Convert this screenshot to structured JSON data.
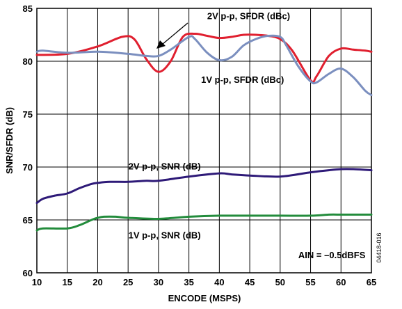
{
  "chart_data": {
    "type": "line",
    "xlabel": "ENCODE (MSPS)",
    "ylabel": "SNR/SFDR (dB)",
    "xlim": [
      10,
      65
    ],
    "ylim": [
      60,
      85
    ],
    "x_ticks": [
      10,
      15,
      20,
      25,
      30,
      35,
      40,
      45,
      50,
      55,
      60,
      65
    ],
    "y_ticks": [
      60,
      65,
      70,
      75,
      80,
      85
    ],
    "grid": true,
    "series": [
      {
        "name": "2V p-p, SFDR (dBc)",
        "color": "#e01f2f",
        "x": [
          10,
          15,
          20,
          24,
          26,
          28,
          30,
          32,
          34,
          36,
          38,
          40,
          42,
          44,
          46,
          48,
          50,
          52,
          55,
          56,
          58,
          60,
          62,
          64,
          65
        ],
        "y": [
          80.6,
          80.7,
          81.4,
          82.3,
          82.1,
          80.2,
          79.0,
          80.0,
          82.3,
          82.6,
          82.4,
          82.2,
          82.3,
          82.5,
          82.5,
          82.4,
          82.1,
          81.0,
          78.2,
          78.6,
          80.5,
          81.2,
          81.1,
          81.0,
          80.9
        ]
      },
      {
        "name": "1V p-p, SFDR (dBc)",
        "color": "#7b8fbf",
        "x": [
          10,
          11,
          15,
          20,
          25,
          28,
          30,
          32,
          35,
          36,
          38,
          40,
          42,
          44,
          46,
          48,
          50,
          51,
          53,
          55,
          56,
          58,
          60,
          62,
          64,
          65
        ],
        "y": [
          80.9,
          81.0,
          80.8,
          80.9,
          80.7,
          80.5,
          80.5,
          81.1,
          82.3,
          82.1,
          80.8,
          80.1,
          80.4,
          81.5,
          82.1,
          82.4,
          82.3,
          81.5,
          79.5,
          78.1,
          78.0,
          78.8,
          79.3,
          78.5,
          77.2,
          76.8
        ]
      },
      {
        "name": "2V p-p, SNR (dB)",
        "color": "#2e1a78",
        "x": [
          10,
          11,
          13,
          15,
          17,
          19,
          20,
          22,
          25,
          28,
          30,
          35,
          40,
          42,
          45,
          50,
          55,
          58,
          60,
          62,
          65
        ],
        "y": [
          66.6,
          67.0,
          67.3,
          67.5,
          68.0,
          68.4,
          68.5,
          68.6,
          68.6,
          68.7,
          68.7,
          69.1,
          69.4,
          69.3,
          69.2,
          69.1,
          69.5,
          69.7,
          69.8,
          69.8,
          69.7
        ]
      },
      {
        "name": "1V p-p, SNR (dB)",
        "color": "#238c3c",
        "x": [
          10,
          11,
          15,
          17,
          19,
          20,
          21,
          23,
          25,
          30,
          35,
          40,
          45,
          50,
          55,
          58,
          60,
          62,
          65
        ],
        "y": [
          64.0,
          64.2,
          64.2,
          64.5,
          65.0,
          65.2,
          65.3,
          65.3,
          65.2,
          65.1,
          65.3,
          65.4,
          65.4,
          65.4,
          65.4,
          65.5,
          65.5,
          65.5,
          65.5
        ]
      }
    ],
    "annotations": [
      {
        "text": "2V p-p, SFDR (dBc)",
        "x": 38,
        "y": 84.3
      },
      {
        "text": "1V p-p, SFDR (dBc)",
        "x": 37,
        "y": 78.3
      },
      {
        "text": "2V p-p, SNR (dB)",
        "x": 31,
        "y": 70.1
      },
      {
        "text": "1V p-p, SNR (dB)",
        "x": 31,
        "y": 63.6
      },
      {
        "text": "AIN = –0.5dBFS",
        "x": 58.5,
        "y": 61.7
      }
    ],
    "figure_id": "04418-016"
  }
}
